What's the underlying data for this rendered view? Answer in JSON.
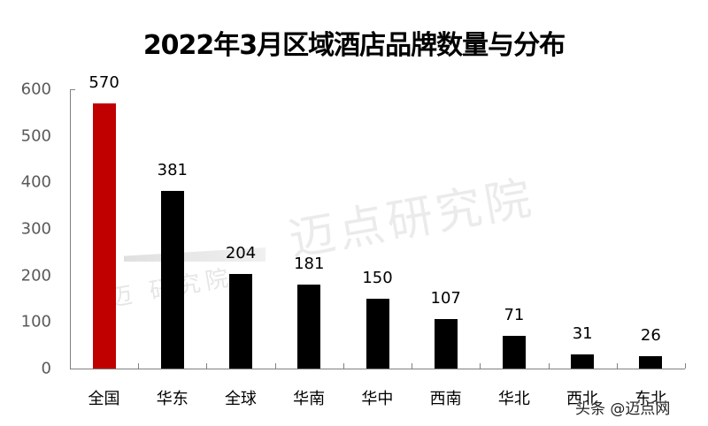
{
  "chart_data": {
    "type": "bar",
    "title": "2022年3月区域酒店品牌数量与分布",
    "categories": [
      "全国",
      "华东",
      "全球",
      "华南",
      "华中",
      "西南",
      "华北",
      "西北",
      "东北"
    ],
    "values": [
      570,
      381,
      204,
      181,
      150,
      107,
      71,
      31,
      26
    ],
    "value_labels": [
      "570",
      "381",
      "204",
      "181",
      "150",
      "107",
      "71",
      "31",
      "26"
    ],
    "bar_colors": [
      "#C00000",
      "#000000",
      "#000000",
      "#000000",
      "#000000",
      "#000000",
      "#000000",
      "#000000",
      "#000000"
    ],
    "xlabel": "",
    "ylabel": "",
    "ylim": [
      0,
      600
    ],
    "yticks": [
      0,
      100,
      200,
      300,
      400,
      500,
      600
    ],
    "ytick_labels": [
      "0",
      "100",
      "200",
      "300",
      "400",
      "500",
      "600"
    ],
    "grid": false,
    "legend": null
  },
  "watermark": {
    "main": "迈点研究院",
    "logo_text": "迈 研究院"
  },
  "credit": "头条 @迈点网",
  "colors": {
    "highlight": "#C00000",
    "bar": "#000000",
    "axis": "#808080",
    "tick_label": "#595959"
  }
}
